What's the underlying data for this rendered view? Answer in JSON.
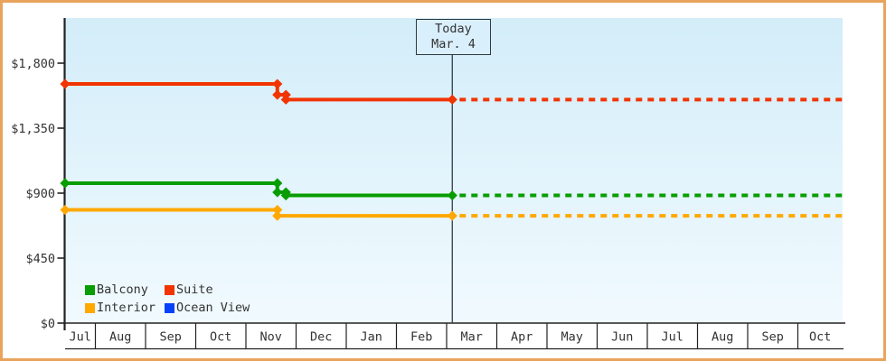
{
  "frame": {
    "border_color": "#e9a45c",
    "background": "#ffffff"
  },
  "legend": {
    "items": [
      {
        "label": "Balcony",
        "color": "#089d00"
      },
      {
        "label": "Suite",
        "color": "#f23400"
      },
      {
        "label": "Interior",
        "color": "#ffa800"
      },
      {
        "label": "Ocean View",
        "color": "#0542fa"
      }
    ]
  },
  "chart_data": {
    "type": "line",
    "title": "",
    "x_months": [
      "Jul",
      "Aug",
      "Sep",
      "Oct",
      "Nov",
      "Dec",
      "Jan",
      "Feb",
      "Mar",
      "Apr",
      "May",
      "Jun",
      "Jul",
      "Aug",
      "Sep",
      "Oct"
    ],
    "y_ticks": [
      {
        "label": "$1,800",
        "value": 1800
      },
      {
        "label": "$1,350",
        "value": 1350
      },
      {
        "label": "$900",
        "value": 900
      },
      {
        "label": "$450",
        "value": 450
      },
      {
        "label": "$0",
        "value": 0
      }
    ],
    "ylim": [
      0,
      2100
    ],
    "grid": false,
    "legend_position": "bottom-left",
    "today": {
      "label_line1": "Today",
      "label_line2": "Mar. 4",
      "x_frac": 0.498
    },
    "forecast": {
      "from_x_frac": 0.498,
      "to_x_frac": 1.0,
      "style": "dashed"
    },
    "series": [
      {
        "name": "Suite",
        "color": "#f23400",
        "points": [
          {
            "x_frac": 0.0,
            "price": 1656
          },
          {
            "x_frac": 0.273,
            "price": 1656
          },
          {
            "x_frac": 0.273,
            "price": 1581
          },
          {
            "x_frac": 0.284,
            "price": 1581
          },
          {
            "x_frac": 0.284,
            "price": 1548
          },
          {
            "x_frac": 0.498,
            "price": 1548
          }
        ],
        "forecast_price": 1548
      },
      {
        "name": "Balcony",
        "color": "#089d00",
        "points": [
          {
            "x_frac": 0.0,
            "price": 969
          },
          {
            "x_frac": 0.273,
            "price": 969
          },
          {
            "x_frac": 0.273,
            "price": 906
          },
          {
            "x_frac": 0.284,
            "price": 906
          },
          {
            "x_frac": 0.284,
            "price": 884
          },
          {
            "x_frac": 0.498,
            "price": 884
          }
        ],
        "forecast_price": 884
      },
      {
        "name": "Interior",
        "color": "#ffa800",
        "points": [
          {
            "x_frac": 0.0,
            "price": 784
          },
          {
            "x_frac": 0.273,
            "price": 784
          },
          {
            "x_frac": 0.273,
            "price": 743
          },
          {
            "x_frac": 0.498,
            "price": 743
          }
        ],
        "forecast_price": 743
      },
      {
        "name": "Ocean View",
        "color": "#0542fa",
        "points": [],
        "forecast_price": null
      }
    ],
    "plot_background": {
      "top": "#d3edf9",
      "bottom": "#f1fafe"
    },
    "axis_color": "#222222",
    "text_color": "#333333",
    "today_line_color": "#3c4a58"
  }
}
